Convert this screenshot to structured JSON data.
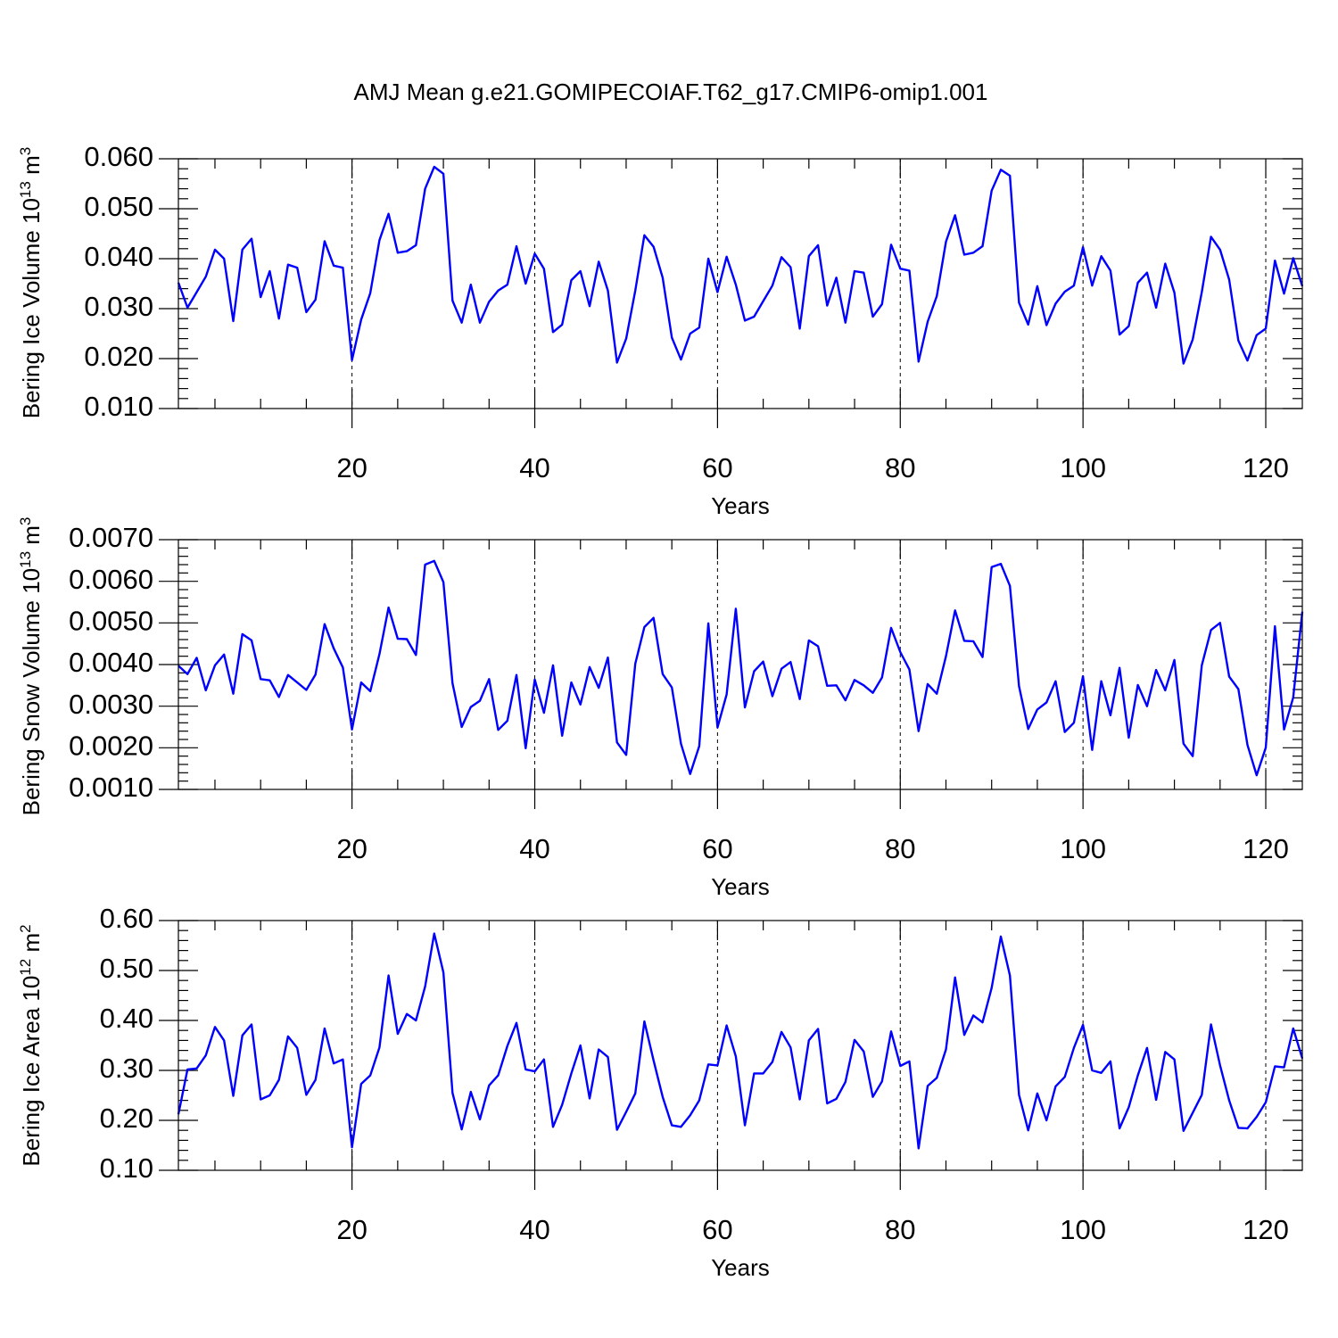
{
  "chart_data": {
    "title": "AMJ Mean g.e21.GOMIPECOIAF.T62_g17.CMIP6-omip1.001",
    "panels": [
      {
        "type": "line",
        "ylabel": "Bering Ice Volume 10",
        "ylabel_exp": "13",
        "ylabel_unit": "m",
        "ylabel_unit_exp": "3",
        "xlabel": "Years",
        "xlim": [
          1,
          124
        ],
        "ylim": [
          0.01,
          0.06
        ],
        "yticks": [
          "0.010",
          "0.020",
          "0.030",
          "0.040",
          "0.050",
          "0.060"
        ],
        "xticks": [
          "20",
          "40",
          "60",
          "80",
          "100",
          "120"
        ],
        "grid_x": true,
        "series": [
          {
            "color": "#0000ff",
            "values": [
              0.0352,
              0.0302,
              0.0333,
              0.0364,
              0.0418,
              0.04,
              0.0275,
              0.0418,
              0.044,
              0.0323,
              0.0375,
              0.028,
              0.0388,
              0.0382,
              0.0293,
              0.0318,
              0.0435,
              0.0386,
              0.0382,
              0.0197,
              0.0278,
              0.0331,
              0.0437,
              0.049,
              0.0412,
              0.0415,
              0.0427,
              0.054,
              0.0584,
              0.057,
              0.0316,
              0.0272,
              0.0348,
              0.0272,
              0.0314,
              0.0336,
              0.0348,
              0.0425,
              0.035,
              0.041,
              0.038,
              0.0253,
              0.0268,
              0.0357,
              0.0375,
              0.0305,
              0.0394,
              0.0336,
              0.0192,
              0.024,
              0.0336,
              0.0447,
              0.0424,
              0.0362,
              0.0242,
              0.0198,
              0.025,
              0.0262,
              0.04,
              0.0333,
              0.0404,
              0.0348,
              0.0276,
              0.0284,
              0.0315,
              0.0346,
              0.0403,
              0.0383,
              0.026,
              0.0405,
              0.0427,
              0.0306,
              0.0362,
              0.0272,
              0.0375,
              0.0372,
              0.0284,
              0.0309,
              0.0428,
              0.038,
              0.0376,
              0.0194,
              0.0274,
              0.0325,
              0.0434,
              0.0487,
              0.0408,
              0.0412,
              0.0425,
              0.0536,
              0.0578,
              0.0566,
              0.0312,
              0.0268,
              0.0345,
              0.0267,
              0.031,
              0.0334,
              0.0346,
              0.0423,
              0.0346,
              0.0405,
              0.0376,
              0.0248,
              0.0265,
              0.0352,
              0.0372,
              0.0302,
              0.039,
              0.0332,
              0.019,
              0.0238,
              0.0333,
              0.0444,
              0.0418,
              0.0358,
              0.0236,
              0.0196,
              0.0247,
              0.026,
              0.0396,
              0.033,
              0.0401,
              0.0345
            ]
          }
        ]
      },
      {
        "type": "line",
        "ylabel": "Bering Snow Volume 10",
        "ylabel_exp": "13",
        "ylabel_unit": "m",
        "ylabel_unit_exp": "3",
        "xlabel": "Years",
        "xlim": [
          1,
          124
        ],
        "ylim": [
          0.001,
          0.007
        ],
        "yticks": [
          "0.0010",
          "0.0020",
          "0.0030",
          "0.0040",
          "0.0050",
          "0.0060",
          "0.0070"
        ],
        "xticks": [
          "20",
          "40",
          "60",
          "80",
          "100",
          "120"
        ],
        "grid_x": true,
        "series": [
          {
            "color": "#0000ff",
            "values": [
              0.00397,
              0.00377,
              0.00416,
              0.00338,
              0.00398,
              0.00424,
              0.0033,
              0.00473,
              0.00458,
              0.00365,
              0.00362,
              0.00322,
              0.00375,
              0.00357,
              0.00339,
              0.00376,
              0.00497,
              0.00439,
              0.00393,
              0.00244,
              0.00357,
              0.00336,
              0.00425,
              0.00537,
              0.00462,
              0.00461,
              0.00423,
              0.0064,
              0.00649,
              0.00598,
              0.00355,
              0.0025,
              0.00298,
              0.00313,
              0.00365,
              0.00243,
              0.00265,
              0.00375,
              0.00199,
              0.00364,
              0.00284,
              0.00398,
              0.00229,
              0.00357,
              0.00304,
              0.00394,
              0.00344,
              0.00417,
              0.00213,
              0.00183,
              0.00402,
              0.0049,
              0.00512,
              0.00377,
              0.00345,
              0.0021,
              0.00137,
              0.00204,
              0.00499,
              0.00249,
              0.00328,
              0.00534,
              0.00297,
              0.00384,
              0.00407,
              0.00324,
              0.0039,
              0.00406,
              0.00317,
              0.00458,
              0.00444,
              0.00349,
              0.0035,
              0.00314,
              0.00363,
              0.0035,
              0.00332,
              0.00369,
              0.00488,
              0.0043,
              0.00388,
              0.0024,
              0.00353,
              0.0033,
              0.0042,
              0.0053,
              0.00457,
              0.00456,
              0.00418,
              0.00634,
              0.00642,
              0.00589,
              0.00348,
              0.00245,
              0.00292,
              0.00309,
              0.0036,
              0.00238,
              0.0026,
              0.00372,
              0.00195,
              0.0036,
              0.00278,
              0.00392,
              0.00224,
              0.00351,
              0.003,
              0.00387,
              0.00338,
              0.00411,
              0.0021,
              0.0018,
              0.00398,
              0.00483,
              0.005,
              0.00371,
              0.00341,
              0.00207,
              0.00134,
              0.002,
              0.00492,
              0.00244,
              0.00321,
              0.00527
            ]
          }
        ]
      },
      {
        "type": "line",
        "ylabel": "Bering Ice Area 10",
        "ylabel_exp": "12",
        "ylabel_unit": "m",
        "ylabel_unit_exp": "2",
        "xlabel": "Years",
        "xlim": [
          1,
          124
        ],
        "ylim": [
          0.1,
          0.6
        ],
        "yticks": [
          "0.10",
          "0.20",
          "0.30",
          "0.40",
          "0.50",
          "0.60"
        ],
        "xticks": [
          "20",
          "40",
          "60",
          "80",
          "100",
          "120"
        ],
        "grid_x": true,
        "series": [
          {
            "color": "#0000ff",
            "values": [
              0.212,
              0.302,
              0.304,
              0.33,
              0.387,
              0.36,
              0.249,
              0.37,
              0.392,
              0.242,
              0.25,
              0.281,
              0.368,
              0.345,
              0.251,
              0.281,
              0.384,
              0.314,
              0.322,
              0.146,
              0.273,
              0.29,
              0.346,
              0.49,
              0.373,
              0.413,
              0.4,
              0.468,
              0.574,
              0.496,
              0.255,
              0.182,
              0.257,
              0.202,
              0.27,
              0.29,
              0.349,
              0.395,
              0.302,
              0.298,
              0.322,
              0.187,
              0.231,
              0.294,
              0.35,
              0.244,
              0.342,
              0.327,
              0.181,
              0.217,
              0.254,
              0.398,
              0.32,
              0.247,
              0.19,
              0.187,
              0.21,
              0.24,
              0.312,
              0.31,
              0.39,
              0.328,
              0.19,
              0.294,
              0.294,
              0.317,
              0.377,
              0.346,
              0.242,
              0.36,
              0.383,
              0.234,
              0.243,
              0.277,
              0.361,
              0.338,
              0.247,
              0.278,
              0.378,
              0.309,
              0.318,
              0.144,
              0.269,
              0.285,
              0.342,
              0.486,
              0.371,
              0.41,
              0.396,
              0.465,
              0.568,
              0.49,
              0.251,
              0.18,
              0.254,
              0.2,
              0.268,
              0.287,
              0.345,
              0.391,
              0.3,
              0.295,
              0.318,
              0.184,
              0.226,
              0.29,
              0.345,
              0.241,
              0.337,
              0.322,
              0.179,
              0.215,
              0.251,
              0.392,
              0.31,
              0.24,
              0.185,
              0.184,
              0.207,
              0.236,
              0.308,
              0.306,
              0.384,
              0.324
            ]
          }
        ]
      }
    ]
  }
}
